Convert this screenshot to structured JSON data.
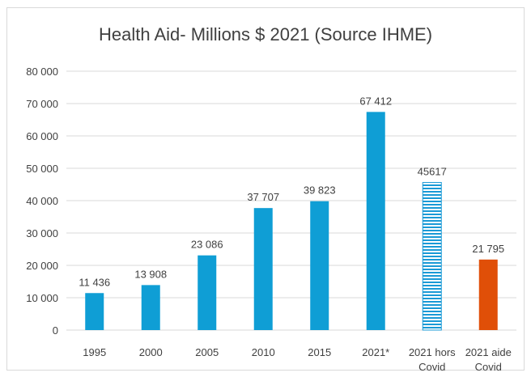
{
  "chart_data": {
    "type": "bar",
    "title": "Health Aid- Millions $ 2021  (Source IHME)",
    "xlabel": "",
    "ylabel": "",
    "ylim": [
      0,
      80000
    ],
    "yticks": [
      "0",
      "10 000",
      "20 000",
      "30 000",
      "40 000",
      "50 000",
      "60 000",
      "70 000",
      "80 000"
    ],
    "grid": true,
    "categories": [
      [
        "1995"
      ],
      [
        "2000"
      ],
      [
        "2005"
      ],
      [
        "2010"
      ],
      [
        "2015"
      ],
      [
        "2021*"
      ],
      [
        "2021 hors",
        "Covid"
      ],
      [
        "2021 aide",
        "Covid"
      ]
    ],
    "values": [
      11436,
      13908,
      23086,
      37707,
      39823,
      67412,
      45617,
      21795
    ],
    "data_labels": [
      "11 436",
      "13 908",
      "23 086",
      "37 707",
      "39 823",
      "67 412",
      "45617",
      "21 795"
    ],
    "bar_styles": [
      "solid",
      "solid",
      "solid",
      "solid",
      "solid",
      "solid",
      "striped",
      "solid"
    ],
    "colors": {
      "main": "#0f9ed5",
      "highlight": "#e04f08",
      "stripe": "#1a9ad6",
      "grid": "#d9d9d9",
      "text": "#404040"
    },
    "bar_colors": [
      "main",
      "main",
      "main",
      "main",
      "main",
      "main",
      "stripe",
      "highlight"
    ]
  }
}
